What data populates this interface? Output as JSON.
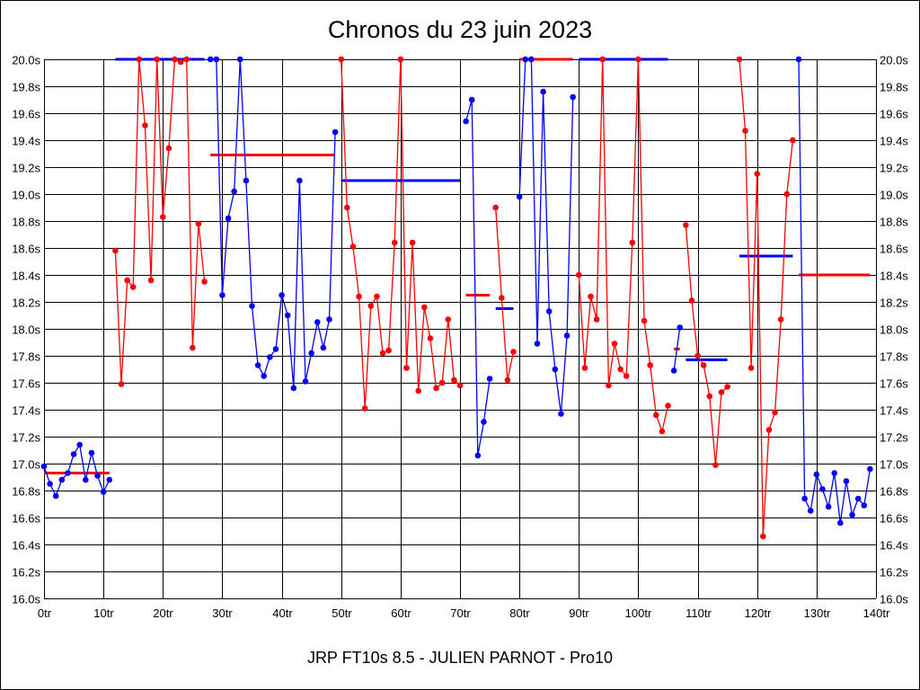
{
  "chart_data": {
    "type": "line",
    "title": "Chronos du 23 juin 2023",
    "xlabel": "JRP FT10s 8.5 - JULIEN PARNOT - Pro10",
    "ylabel": "",
    "xlim": [
      0,
      140
    ],
    "ylim": [
      16.0,
      20.0
    ],
    "x_ticks": [
      0,
      10,
      20,
      30,
      40,
      50,
      60,
      70,
      80,
      90,
      100,
      110,
      120,
      130,
      140
    ],
    "x_tick_labels": [
      "0tr",
      "10tr",
      "20tr",
      "30tr",
      "40tr",
      "50tr",
      "60tr",
      "70tr",
      "80tr",
      "90tr",
      "100tr",
      "110tr",
      "120tr",
      "130tr",
      "140tr"
    ],
    "y_ticks": [
      16.0,
      16.2,
      16.4,
      16.6,
      16.8,
      17.0,
      17.2,
      17.4,
      17.6,
      17.8,
      18.0,
      18.2,
      18.4,
      18.6,
      18.8,
      19.0,
      19.2,
      19.4,
      19.6,
      19.8,
      20.0
    ],
    "y_tick_labels": [
      "16.0s",
      "16.2s",
      "16.4s",
      "16.6s",
      "16.8s",
      "17.0s",
      "17.2s",
      "17.4s",
      "17.6s",
      "17.8s",
      "18.0s",
      "18.2s",
      "18.4s",
      "18.6s",
      "18.8s",
      "19.0s",
      "19.2s",
      "19.4s",
      "19.6s",
      "19.8s",
      "20.0s"
    ],
    "grid": true,
    "colors": {
      "blue": "#0000ff",
      "red": "#ff0000"
    },
    "series": [
      {
        "name": "seg1",
        "color": "blue",
        "x_start": 0,
        "values": [
          16.98,
          16.85,
          16.76,
          16.88,
          16.93,
          17.07,
          17.14,
          16.88,
          17.08,
          16.91,
          16.79,
          16.88
        ],
        "avg": 16.93,
        "avg_color": "red"
      },
      {
        "name": "seg2",
        "color": "red",
        "x_start": 12,
        "values": [
          18.58,
          17.59,
          18.36,
          18.31,
          20.0,
          19.51,
          18.36,
          20.0,
          18.83,
          19.34,
          20.0,
          19.98,
          20.0,
          17.86,
          18.78,
          18.35
        ],
        "avg": 20.0,
        "avg_color": "blue"
      },
      {
        "name": "seg3",
        "color": "blue",
        "x_start": 28,
        "values": [
          20.0,
          20.0,
          18.25,
          18.82,
          19.02,
          20.0,
          19.1,
          18.17,
          17.73,
          17.65,
          17.79,
          17.85,
          18.25,
          18.1,
          17.56,
          19.1,
          17.61,
          17.82,
          18.05,
          17.86,
          18.07,
          19.46
        ],
        "avg": 19.29,
        "avg_color": "red"
      },
      {
        "name": "seg4",
        "color": "red",
        "x_start": 50,
        "values": [
          20.0,
          18.9,
          18.61,
          18.24,
          17.41,
          18.17,
          18.24,
          17.82,
          17.84,
          18.64,
          20.0,
          17.71,
          18.64,
          17.54,
          18.16,
          17.93,
          17.56,
          17.6,
          18.07,
          17.62,
          17.58
        ],
        "avg": 19.1,
        "avg_color": "blue"
      },
      {
        "name": "seg5",
        "color": "blue",
        "x_start": 71,
        "values": [
          19.54,
          19.7,
          17.06,
          17.31,
          17.63
        ],
        "avg": 18.25,
        "avg_color": "red"
      },
      {
        "name": "seg6",
        "color": "red",
        "x_start": 76,
        "values": [
          18.9,
          18.23,
          17.62,
          17.83
        ],
        "avg": 18.15,
        "avg_color": "blue"
      },
      {
        "name": "seg7",
        "color": "blue",
        "x_start": 80,
        "values": [
          18.98,
          20.0,
          20.0,
          17.89,
          19.76,
          18.13,
          17.7,
          17.37,
          17.95,
          19.72
        ],
        "avg": 20.0,
        "avg_color": "red"
      },
      {
        "name": "seg8",
        "color": "red",
        "x_start": 90,
        "values": [
          18.4,
          17.71,
          18.24,
          18.07,
          20.0,
          17.58,
          17.89,
          17.7,
          17.65,
          18.64,
          20.0,
          18.06,
          17.73,
          17.36,
          17.24,
          17.43
        ],
        "avg": 20.0,
        "avg_color": "blue"
      },
      {
        "name": "seg9",
        "color": "blue",
        "x_start": 106,
        "values": [
          17.69,
          18.01
        ],
        "avg": 17.85,
        "avg_color": "red"
      },
      {
        "name": "seg10",
        "color": "red",
        "x_start": 108,
        "values": [
          18.77,
          18.21,
          17.8,
          17.73,
          17.5,
          16.99,
          17.53,
          17.57
        ],
        "avg": 17.77,
        "avg_color": "blue"
      },
      {
        "name": "seg11",
        "color": "red",
        "x_start": 117,
        "values": [
          20.0,
          19.47,
          17.71,
          19.15,
          16.46,
          17.25,
          17.38,
          18.07,
          19.0,
          19.4
        ],
        "avg": 18.54,
        "avg_color": "blue"
      },
      {
        "name": "seg12",
        "color": "blue",
        "x_start": 127,
        "values": [
          20.0,
          16.74,
          16.65,
          16.92,
          16.81,
          16.68,
          16.93,
          16.56,
          16.87,
          16.62,
          16.74,
          16.69,
          16.96
        ],
        "avg": 18.4,
        "avg_color": "red"
      }
    ]
  }
}
